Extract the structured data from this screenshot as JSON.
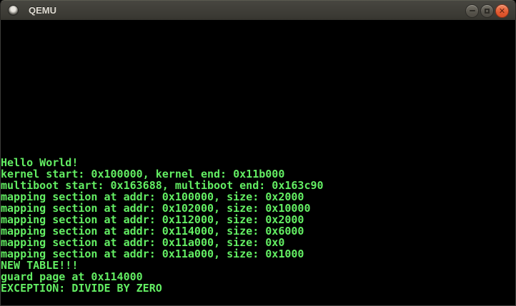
{
  "window": {
    "title": "QEMU",
    "controls": {
      "minimize": "minimize",
      "maximize": "maximize",
      "close": "close"
    }
  },
  "colors": {
    "terminal_background": "#000000",
    "terminal_text_green": "#63ee63",
    "titlebar_background": "#3a3933",
    "close_button_orange": "#e35a31"
  },
  "icons": {
    "window_icon": "qemu-window-icon",
    "minimize_icon": "dash",
    "maximize_icon": "square-outline",
    "close_icon": "cross"
  },
  "terminal": {
    "lines": [
      "Hello World!",
      "kernel start: 0x100000, kernel end: 0x11b000",
      "multiboot start: 0x163688, multiboot end: 0x163c90",
      "mapping section at addr: 0x100000, size: 0x2000",
      "mapping section at addr: 0x102000, size: 0x10000",
      "mapping section at addr: 0x112000, size: 0x2000",
      "mapping section at addr: 0x114000, size: 0x6000",
      "mapping section at addr: 0x11a000, size: 0x0",
      "mapping section at addr: 0x11a000, size: 0x1000",
      "NEW TABLE!!!",
      "guard page at 0x114000",
      "EXCEPTION: DIVIDE BY ZERO"
    ]
  }
}
